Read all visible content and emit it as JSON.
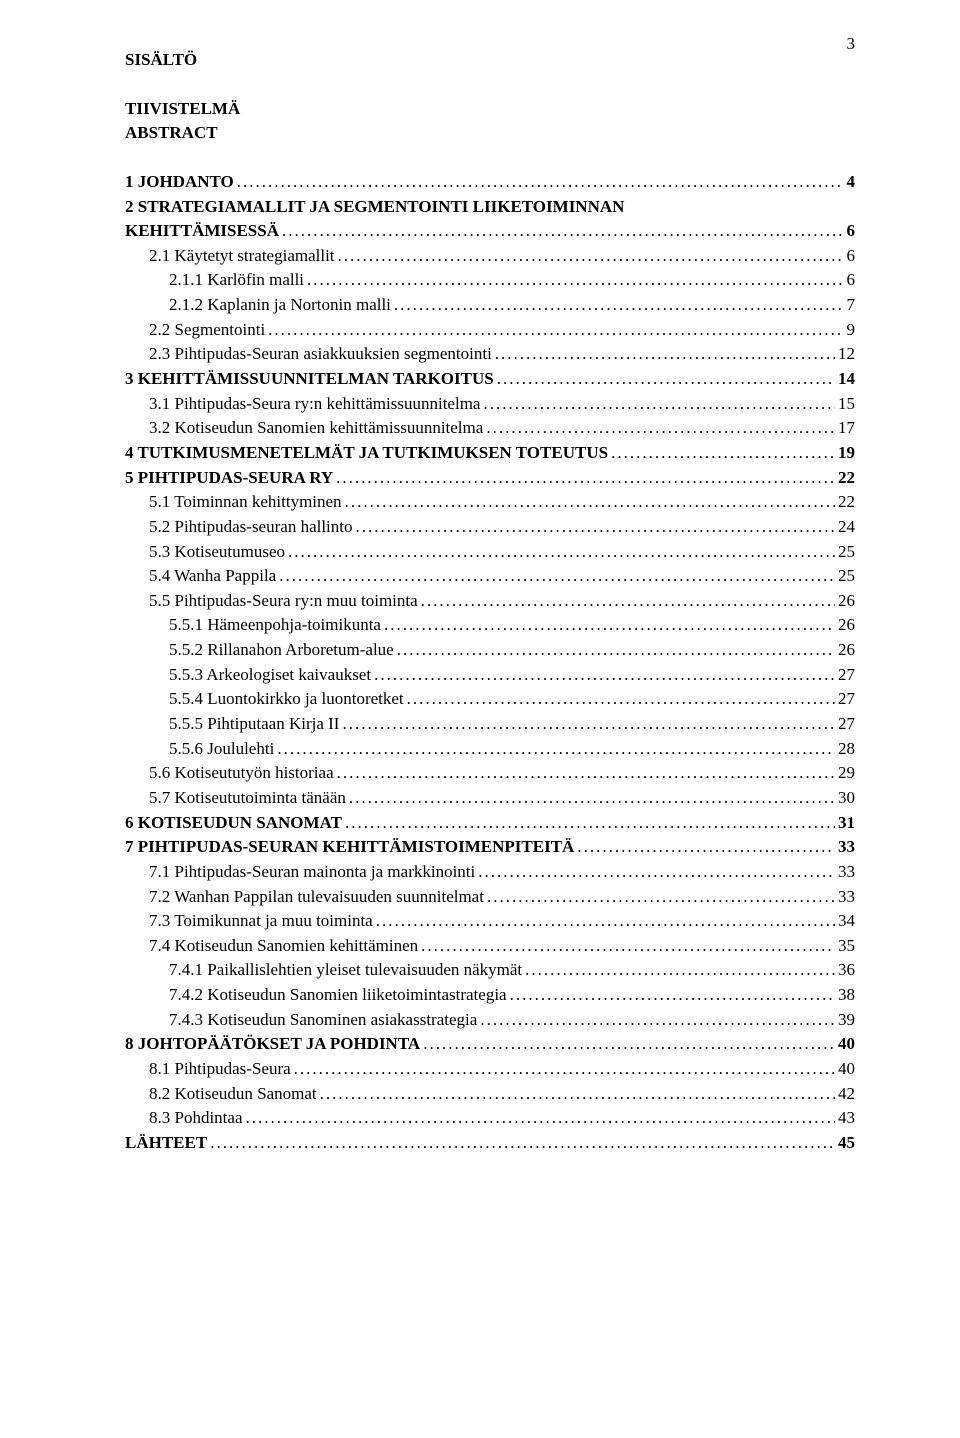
{
  "page_number": "3",
  "heading": {
    "title": "SISÄLTÖ",
    "sub1": "TIIVISTELMÄ",
    "sub2": "ABSTRACT"
  },
  "style": {
    "font_family": "Times New Roman",
    "body_fontsize_pt": 13,
    "text_color": "#000000",
    "background_color": "#ffffff",
    "bold_weight": 700,
    "line_height": 1.45,
    "leader_char": "."
  },
  "toc": [
    {
      "label": "1 JOHDANTO",
      "page": "4",
      "bold": true,
      "indent": 0
    },
    {
      "label": "2 STRATEGIAMALLIT JA SEGMENTOINTI LIIKETOIMINNAN KEHITTÄMISESSÄ",
      "page": "6",
      "bold": true,
      "indent": 0,
      "wrap": true
    },
    {
      "label": "2.1  Käytetyt strategiamallit",
      "page": "6",
      "bold": false,
      "indent": 1
    },
    {
      "label": "2.1.1 Karlöfin malli",
      "page": "6",
      "bold": false,
      "indent": 2
    },
    {
      "label": "2.1.2 Kaplanin ja Nortonin  malli",
      "page": "7",
      "bold": false,
      "indent": 2
    },
    {
      "label": "2.2  Segmentointi",
      "page": "9",
      "bold": false,
      "indent": 1
    },
    {
      "label": "2.3  Pihtipudas-Seuran asiakkuuksien segmentointi",
      "page": "12",
      "bold": false,
      "indent": 1
    },
    {
      "label": "3 KEHITTÄMISSUUNNITELMAN TARKOITUS",
      "page": "14",
      "bold": true,
      "indent": 0
    },
    {
      "label": "3.1  Pihtipudas-Seura ry:n kehittämissuunnitelma",
      "page": "15",
      "bold": false,
      "indent": 1
    },
    {
      "label": "3.2  Kotiseudun Sanomien kehittämissuunnitelma",
      "page": "17",
      "bold": false,
      "indent": 1
    },
    {
      "label": "4 TUTKIMUSMENETELMÄT JA TUTKIMUKSEN TOTEUTUS",
      "page": "19",
      "bold": true,
      "indent": 0
    },
    {
      "label": "5 PIHTIPUDAS-SEURA RY",
      "page": "22",
      "bold": true,
      "indent": 0
    },
    {
      "label": "5.1  Toiminnan kehittyminen",
      "page": "22",
      "bold": false,
      "indent": 1
    },
    {
      "label": "5.2  Pihtipudas-seuran hallinto",
      "page": "24",
      "bold": false,
      "indent": 1
    },
    {
      "label": "5.3  Kotiseutumuseo",
      "page": "25",
      "bold": false,
      "indent": 1
    },
    {
      "label": "5.4  Wanha Pappila",
      "page": "25",
      "bold": false,
      "indent": 1
    },
    {
      "label": "5.5  Pihtipudas-Seura ry:n muu toiminta",
      "page": "26",
      "bold": false,
      "indent": 1
    },
    {
      "label": "5.5.1 Hämeenpohja-toimikunta",
      "page": "26",
      "bold": false,
      "indent": 2
    },
    {
      "label": "5.5.2 Rillanahon Arboretum-alue",
      "page": "26",
      "bold": false,
      "indent": 2
    },
    {
      "label": "5.5.3 Arkeologiset kaivaukset",
      "page": "27",
      "bold": false,
      "indent": 2
    },
    {
      "label": "5.5.4 Luontokirkko ja luontoretket",
      "page": "27",
      "bold": false,
      "indent": 2
    },
    {
      "label": "5.5.5 Pihtiputaan Kirja II",
      "page": "27",
      "bold": false,
      "indent": 2
    },
    {
      "label": "5.5.6 Joululehti",
      "page": "28",
      "bold": false,
      "indent": 2
    },
    {
      "label": "5.6  Kotiseututyön historiaa",
      "page": "29",
      "bold": false,
      "indent": 1
    },
    {
      "label": "5.7  Kotiseututoiminta tänään",
      "page": "30",
      "bold": false,
      "indent": 1
    },
    {
      "label": "6 KOTISEUDUN SANOMAT",
      "page": "31",
      "bold": true,
      "indent": 0
    },
    {
      "label": "7 PIHTIPUDAS-SEURAN KEHITTÄMISTOIMENPITEITÄ",
      "page": "33",
      "bold": true,
      "indent": 0
    },
    {
      "label": "7.1  Pihtipudas-Seuran mainonta ja markkinointi",
      "page": "33",
      "bold": false,
      "indent": 1
    },
    {
      "label": "7.2  Wanhan Pappilan tulevaisuuden suunnitelmat",
      "page": "33",
      "bold": false,
      "indent": 1
    },
    {
      "label": "7.3  Toimikunnat ja muu toiminta",
      "page": "34",
      "bold": false,
      "indent": 1
    },
    {
      "label": "7.4  Kotiseudun Sanomien kehittäminen",
      "page": "35",
      "bold": false,
      "indent": 1
    },
    {
      "label": "7.4.1 Paikallislehtien yleiset tulevaisuuden näkymät",
      "page": "36",
      "bold": false,
      "indent": 2
    },
    {
      "label": "7.4.2 Kotiseudun Sanomien liiketoimintastrategia",
      "page": "38",
      "bold": false,
      "indent": 2
    },
    {
      "label": "7.4.3 Kotiseudun Sanominen asiakasstrategia",
      "page": "39",
      "bold": false,
      "indent": 2
    },
    {
      "label": "8 JOHTOPÄÄTÖKSET JA POHDINTA",
      "page": "40",
      "bold": true,
      "indent": 0
    },
    {
      "label": "8.1  Pihtipudas-Seura",
      "page": "40",
      "bold": false,
      "indent": 1
    },
    {
      "label": "8.2  Kotiseudun Sanomat",
      "page": "42",
      "bold": false,
      "indent": 1
    },
    {
      "label": "8.3  Pohdintaa",
      "page": "43",
      "bold": false,
      "indent": 1
    },
    {
      "label": "LÄHTEET",
      "page": "45",
      "bold": true,
      "indent": 0
    }
  ]
}
